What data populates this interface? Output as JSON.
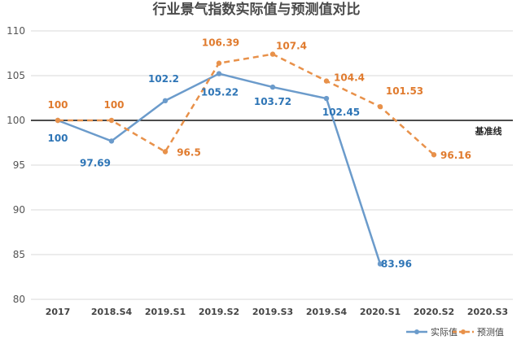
{
  "chart_data": {
    "type": "line",
    "title": "行业景气指数实际值与预测值对比",
    "categories": [
      "2017",
      "2018.S4",
      "2019.S1",
      "2019.S2",
      "2019.S3",
      "2019.S4",
      "2020.S1",
      "2020.S2",
      "2020.S3"
    ],
    "ylim": [
      80,
      110
    ],
    "yticks": [
      80,
      85,
      90,
      95,
      100,
      105,
      110
    ],
    "grid": true,
    "legend_position": "bottom-right",
    "baseline": {
      "value": 100,
      "label": "基准线"
    },
    "series": [
      {
        "name": "实际值",
        "color": "#6b9bcb",
        "label_color": "#2e75b6",
        "style": "solid",
        "values": [
          100,
          97.69,
          102.2,
          105.22,
          103.72,
          102.45,
          83.96,
          null,
          null
        ],
        "labels": [
          "100",
          "97.69",
          "102.2",
          "105.22",
          "103.72",
          "102.45",
          "83.96",
          "",
          ""
        ]
      },
      {
        "name": "预测值",
        "color": "#e8914a",
        "label_color": "#e07b2e",
        "style": "dashed",
        "values": [
          100,
          100,
          96.5,
          106.39,
          107.4,
          104.4,
          101.53,
          96.16,
          null
        ],
        "labels": [
          "100",
          "100",
          "96.5",
          "106.39",
          "107.4",
          "104.4",
          "101.53",
          "96.16",
          ""
        ]
      }
    ]
  }
}
